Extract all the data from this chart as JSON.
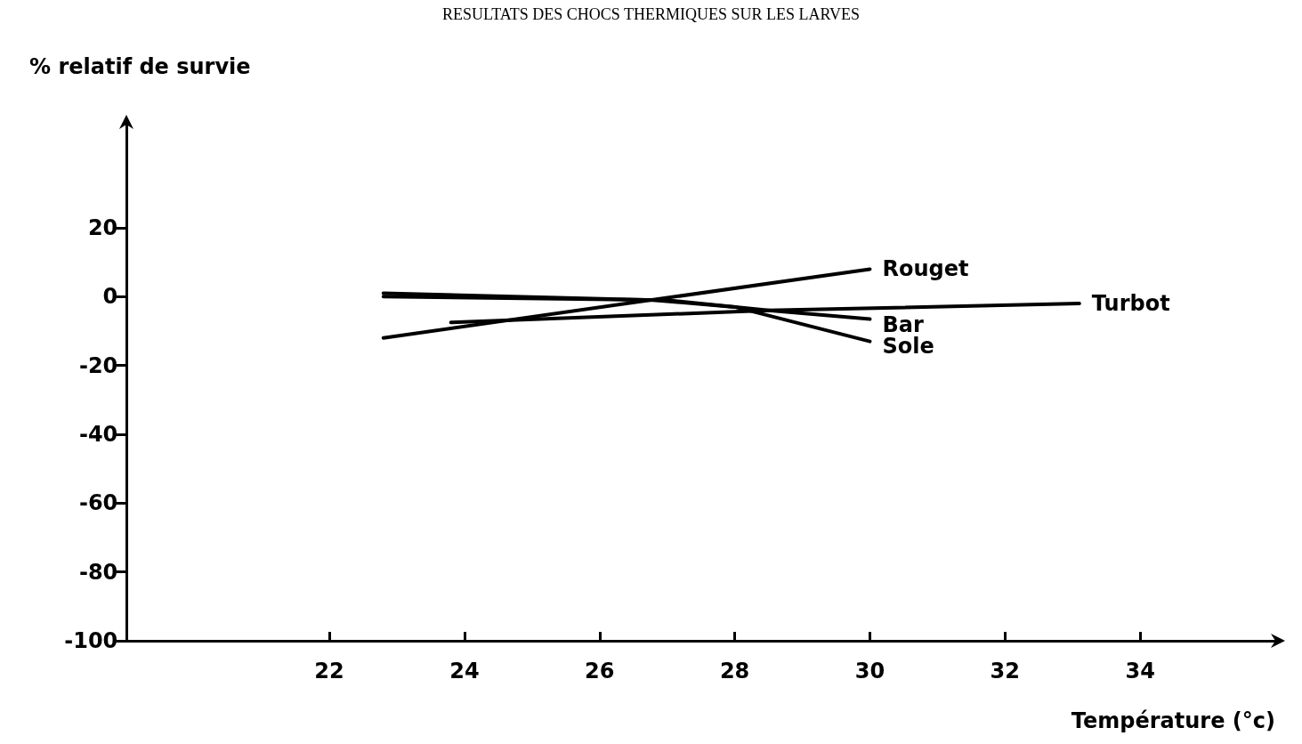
{
  "chart_data": {
    "type": "line",
    "title": "RESULTATS DES CHOCS THERMIQUES SUR LES LARVES",
    "xlabel": "Température (°c)",
    "ylabel": "% relatif de survie",
    "xlim": [
      19,
      36
    ],
    "xticks": [
      22,
      24,
      26,
      28,
      30,
      32,
      34
    ],
    "ylim": [
      -100,
      50
    ],
    "yticks": [
      -100,
      -80,
      -60,
      -40,
      -20,
      0,
      20
    ],
    "grid": false,
    "legend": false,
    "marker": "none",
    "line_style": "solid",
    "series": [
      {
        "name": "Rouget",
        "color": "#000000",
        "x": [
          22.8,
          30
        ],
        "values": [
          -12,
          8
        ]
      },
      {
        "name": "Turbot",
        "color": "#000000",
        "x": [
          22.8,
          27,
          28.5,
          33.1
        ],
        "values": [
          0,
          -1,
          -4,
          -2
        ]
      },
      {
        "name": "Bar",
        "color": "#000000",
        "x": [
          23.8,
          28.5,
          30
        ],
        "values": [
          -7.5,
          -4,
          -6.5
        ]
      },
      {
        "name": "Sole",
        "color": "#000000",
        "x": [
          22.8,
          26.8,
          28,
          30
        ],
        "values": [
          1,
          -1,
          -3,
          -13
        ]
      }
    ]
  }
}
